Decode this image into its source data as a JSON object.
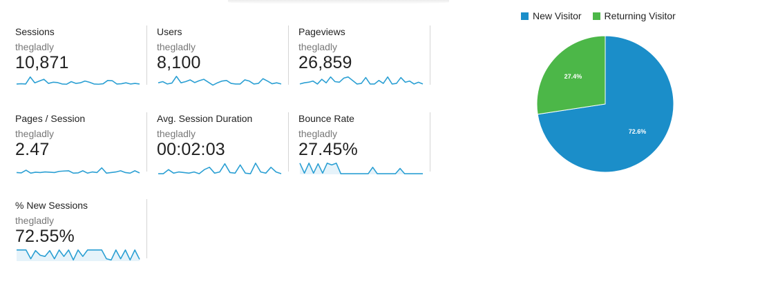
{
  "segment": "thegladly",
  "colors": {
    "new": "#1b8ec9",
    "returning": "#4cb748",
    "spark_line": "#2a9fd3",
    "spark_fill": "#e6f3fa"
  },
  "metrics": [
    {
      "name": "Sessions",
      "value": "10,871",
      "spark": [
        0.3,
        0.32,
        0.3,
        0.9,
        0.4,
        0.55,
        0.7,
        0.35,
        0.45,
        0.42,
        0.3,
        0.28,
        0.5,
        0.35,
        0.4,
        0.55,
        0.45,
        0.3,
        0.28,
        0.32,
        0.6,
        0.58,
        0.3,
        0.32,
        0.4,
        0.3,
        0.35,
        0.3
      ],
      "fill": false
    },
    {
      "name": "Users",
      "value": "8,100",
      "spark": [
        0.4,
        0.5,
        0.3,
        0.38,
        0.95,
        0.4,
        0.5,
        0.65,
        0.42,
        0.58,
        0.7,
        0.45,
        0.2,
        0.4,
        0.55,
        0.6,
        0.35,
        0.3,
        0.3,
        0.65,
        0.55,
        0.3,
        0.35,
        0.75,
        0.55,
        0.32,
        0.4,
        0.3
      ],
      "fill": false
    },
    {
      "name": "Pageviews",
      "value": "26,859",
      "spark": [
        0.3,
        0.4,
        0.45,
        0.55,
        0.3,
        0.7,
        0.4,
        0.9,
        0.5,
        0.45,
        0.8,
        0.9,
        0.6,
        0.3,
        0.35,
        0.85,
        0.3,
        0.3,
        0.6,
        0.35,
        0.9,
        0.3,
        0.35,
        0.85,
        0.45,
        0.55,
        0.3,
        0.45,
        0.3
      ],
      "fill": false
    },
    {
      "name": "Pages / Session",
      "value": "2.47",
      "spark": [
        0.15,
        0.12,
        0.35,
        0.1,
        0.18,
        0.15,
        0.2,
        0.18,
        0.15,
        0.25,
        0.28,
        0.3,
        0.1,
        0.12,
        0.3,
        0.1,
        0.2,
        0.15,
        0.55,
        0.1,
        0.15,
        0.2,
        0.3,
        0.15,
        0.1,
        0.3,
        0.12
      ],
      "fill": false
    },
    {
      "name": "Avg. Session Duration",
      "value": "00:02:03",
      "spark": [
        0.05,
        0.05,
        0.4,
        0.1,
        0.2,
        0.15,
        0.1,
        0.2,
        0.05,
        0.4,
        0.6,
        0.1,
        0.2,
        0.9,
        0.15,
        0.1,
        0.8,
        0.1,
        0.05,
        0.95,
        0.2,
        0.1,
        0.6,
        0.2,
        0.05
      ],
      "fill": false
    },
    {
      "name": "Bounce Rate",
      "value": "27.45%",
      "spark": [
        0.95,
        0.1,
        0.95,
        0.1,
        0.9,
        0.1,
        0.95,
        0.8,
        0.95,
        0.05,
        0.05,
        0.05,
        0.05,
        0.05,
        0.05,
        0.05,
        0.6,
        0.05,
        0.05,
        0.05,
        0.05,
        0.05,
        0.5,
        0.05,
        0.05,
        0.05,
        0.05,
        0.05
      ],
      "fill": true
    },
    {
      "name": "% New Sessions",
      "value": "72.55%",
      "spark": [
        0.95,
        0.95,
        0.95,
        0.2,
        0.9,
        0.5,
        0.4,
        0.9,
        0.2,
        0.95,
        0.4,
        0.95,
        0.1,
        0.95,
        0.4,
        0.95,
        0.95,
        0.95,
        0.95,
        0.2,
        0.1,
        0.95,
        0.2,
        0.95,
        0.1,
        0.95,
        0.15
      ],
      "fill": true
    }
  ],
  "chart_data": {
    "type": "pie",
    "legend_position": "top",
    "slices": [
      {
        "name": "New Visitor",
        "value": 72.6,
        "label": "72.6%"
      },
      {
        "name": "Returning Visitor",
        "value": 27.4,
        "label": "27.4%"
      }
    ]
  }
}
